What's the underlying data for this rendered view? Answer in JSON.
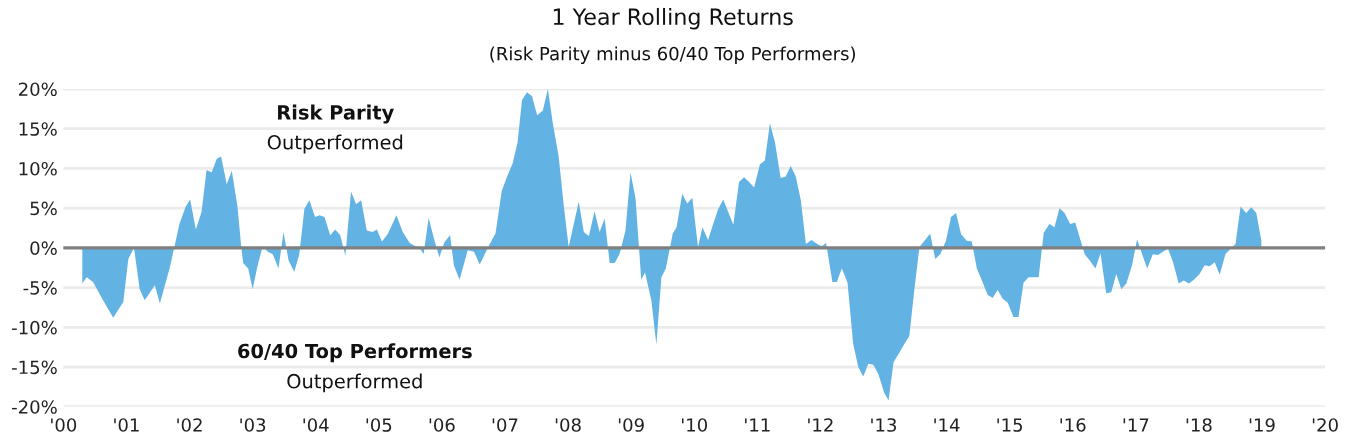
{
  "chart_data": {
    "type": "area",
    "title": "1 Year Rolling Returns",
    "subtitle": "(Risk Parity minus 60/40 Top Performers)",
    "annotations": [
      "Risk Parity",
      "Outperformed",
      "60/40 Top Performers",
      "Outperformed"
    ],
    "x": [
      2000.3,
      2000.37,
      2000.47,
      2000.63,
      2000.79,
      2000.95,
      2001.03,
      2001.12,
      2001.21,
      2001.29,
      2001.45,
      2001.53,
      2001.69,
      2001.77,
      2001.84,
      2001.94,
      2002.01,
      2002.1,
      2002.19,
      2002.27,
      2002.35,
      2002.43,
      2002.5,
      2002.59,
      2002.67,
      2002.76,
      2002.82,
      2002.85,
      2002.93,
      2003.0,
      2003.08,
      2003.16,
      2003.24,
      2003.32,
      2003.41,
      2003.49,
      2003.57,
      2003.66,
      2003.74,
      2003.82,
      2003.9,
      2003.99,
      2004.06,
      2004.14,
      2004.23,
      2004.31,
      2004.39,
      2004.47,
      2004.56,
      2004.64,
      2004.72,
      2004.81,
      2004.9,
      2004.97,
      2005.05,
      2005.14,
      2005.28,
      2005.38,
      2005.49,
      2005.58,
      2005.64,
      2005.71,
      2005.79,
      2005.87,
      2005.96,
      2006.04,
      2006.13,
      2006.19,
      2006.28,
      2006.41,
      2006.51,
      2006.6,
      2006.74,
      2006.85,
      2006.95,
      2007.04,
      2007.12,
      2007.2,
      2007.27,
      2007.35,
      2007.43,
      2007.51,
      2007.6,
      2007.68,
      2007.76,
      2007.85,
      2007.93,
      2008.01,
      2008.09,
      2008.17,
      2008.25,
      2008.33,
      2008.42,
      2008.5,
      2008.58,
      2008.66,
      2008.74,
      2008.82,
      2008.91,
      2008.99,
      2009.07,
      2009.16,
      2009.22,
      2009.32,
      2009.4,
      2009.48,
      2009.55,
      2009.66,
      2009.72,
      2009.81,
      2009.89,
      2009.97,
      2010.06,
      2010.13,
      2010.22,
      2010.3,
      2010.38,
      2010.46,
      2010.55,
      2010.62,
      2010.71,
      2010.79,
      2010.87,
      2010.95,
      2011.04,
      2011.12,
      2011.2,
      2011.28,
      2011.37,
      2011.45,
      2011.53,
      2011.61,
      2011.69,
      2011.77,
      2011.86,
      2011.95,
      2012.02,
      2012.09,
      2012.19,
      2012.26,
      2012.34,
      2012.43,
      2012.52,
      2012.6,
      2012.68,
      2012.76,
      2012.84,
      2012.92,
      2013.01,
      2013.08,
      2013.16,
      2013.25,
      2013.33,
      2013.41,
      2013.49,
      2013.57,
      2013.66,
      2013.74,
      2013.82,
      2013.9,
      2013.99,
      2014.07,
      2014.15,
      2014.23,
      2014.32,
      2014.4,
      2014.48,
      2014.56,
      2014.65,
      2014.73,
      2014.81,
      2014.89,
      2014.97,
      2015.06,
      2015.14,
      2015.22,
      2015.3,
      2015.38,
      2015.46,
      2015.54,
      2015.63,
      2015.71,
      2015.79,
      2015.87,
      2015.96,
      2016.04,
      2016.11,
      2016.19,
      2016.27,
      2016.36,
      2016.44,
      2016.53,
      2016.61,
      2016.69,
      2016.77,
      2016.85,
      2016.94,
      2017.02,
      2017.1,
      2017.18,
      2017.27,
      2017.35,
      2017.43,
      2017.51,
      2017.59,
      2017.68,
      2017.76,
      2017.84,
      2017.92,
      2018.01,
      2018.09,
      2018.17,
      2018.25,
      2018.33,
      2018.42,
      2018.5,
      2018.58,
      2018.66,
      2018.75,
      2018.83,
      2018.91,
      2018.99
    ],
    "series": [
      {
        "color": "#62b3e4",
        "values": [
          -4.5,
          -3.7,
          -4.3,
          -6.6,
          -8.8,
          -6.8,
          -1.4,
          0.0,
          -5.2,
          -6.6,
          -4.7,
          -7.0,
          -2.4,
          0.5,
          3.0,
          5.2,
          6.1,
          2.3,
          4.5,
          9.8,
          9.5,
          11.2,
          11.5,
          8.0,
          9.7,
          5.2,
          0.1,
          -1.9,
          -2.6,
          -5.2,
          -2.2,
          0.2,
          -0.5,
          -0.8,
          -2.6,
          2.0,
          -1.6,
          -3.0,
          -0.8,
          4.9,
          6.0,
          3.9,
          4.1,
          3.9,
          1.6,
          2.3,
          1.6,
          -1.0,
          7.1,
          5.5,
          6.0,
          2.2,
          2.0,
          2.3,
          0.8,
          1.7,
          4.1,
          2.0,
          0.6,
          0.2,
          0.1,
          -0.8,
          3.8,
          1.3,
          -1.2,
          0.7,
          1.6,
          -2.2,
          -4.0,
          -0.3,
          -0.5,
          -2.1,
          0.2,
          1.8,
          7.2,
          9.1,
          10.6,
          13.3,
          18.6,
          19.6,
          19.1,
          16.7,
          17.3,
          20.0,
          15.6,
          11.6,
          5.5,
          0.1,
          3.0,
          5.8,
          2.0,
          1.5,
          4.6,
          2.0,
          3.7,
          -1.9,
          -1.9,
          -0.7,
          2.2,
          9.5,
          6.2,
          -4.0,
          -3.1,
          -6.6,
          -12.2,
          -3.7,
          -2.6,
          1.8,
          2.6,
          6.8,
          5.6,
          6.3,
          0.1,
          2.6,
          1.0,
          3.0,
          4.9,
          6.1,
          4.3,
          2.9,
          8.3,
          8.9,
          8.3,
          7.6,
          10.5,
          11.0,
          15.7,
          13.3,
          8.8,
          9.0,
          10.3,
          9.0,
          6.0,
          0.5,
          1.0,
          0.5,
          0.2,
          0.6,
          -4.3,
          -4.3,
          -2.6,
          -4.4,
          -12.1,
          -15.0,
          -16.2,
          -14.6,
          -14.7,
          -15.9,
          -18.2,
          -19.2,
          -14.4,
          -13.2,
          -12.1,
          -11.1,
          -5.2,
          0.1,
          1.0,
          1.8,
          -1.4,
          -0.8,
          0.9,
          3.9,
          4.4,
          1.7,
          0.9,
          0.8,
          -2.6,
          -4.1,
          -5.9,
          -6.3,
          -5.3,
          -6.4,
          -6.9,
          -8.7,
          -8.7,
          -4.4,
          -3.7,
          -3.7,
          -3.7,
          1.9,
          3.0,
          2.6,
          5.0,
          4.4,
          3.0,
          3.2,
          1.3,
          -0.8,
          -1.6,
          -2.6,
          -0.7,
          -5.7,
          -5.6,
          -3.3,
          -5.2,
          -4.5,
          -2.2,
          1.1,
          -0.8,
          -2.6,
          -0.8,
          -0.9,
          -0.5,
          -0.1,
          -1.8,
          -4.5,
          -4.1,
          -4.5,
          -4.0,
          -3.3,
          -2.2,
          -2.3,
          -1.8,
          -3.4,
          -0.8,
          -0.1,
          0.5,
          5.2,
          4.4,
          5.1,
          4.4,
          0.9
        ]
      }
    ],
    "xlim": [
      2000,
      2020
    ],
    "xticks": [
      {
        "value": 2000,
        "label": "'00"
      },
      {
        "value": 2001,
        "label": "'01"
      },
      {
        "value": 2002,
        "label": "'02"
      },
      {
        "value": 2003,
        "label": "'03"
      },
      {
        "value": 2004,
        "label": "'04"
      },
      {
        "value": 2005,
        "label": "'05"
      },
      {
        "value": 2006,
        "label": "'06"
      },
      {
        "value": 2007,
        "label": "'07"
      },
      {
        "value": 2008,
        "label": "'08"
      },
      {
        "value": 2009,
        "label": "'09"
      },
      {
        "value": 2010,
        "label": "'10"
      },
      {
        "value": 2011,
        "label": "'11"
      },
      {
        "value": 2012,
        "label": "'12"
      },
      {
        "value": 2013,
        "label": "'13"
      },
      {
        "value": 2014,
        "label": "'14"
      },
      {
        "value": 2015,
        "label": "'15"
      },
      {
        "value": 2016,
        "label": "'16"
      },
      {
        "value": 2017,
        "label": "'17"
      },
      {
        "value": 2018,
        "label": "'18"
      },
      {
        "value": 2019,
        "label": "'19"
      },
      {
        "value": 2020,
        "label": "'20"
      }
    ],
    "ylim": [
      -20,
      20
    ],
    "yticks": [
      {
        "value": -20,
        "label": "-20%"
      },
      {
        "value": -15,
        "label": "-15%"
      },
      {
        "value": -10,
        "label": "-10%"
      },
      {
        "value": -5,
        "label": "-5%"
      },
      {
        "value": 0,
        "label": "0%"
      },
      {
        "value": 5,
        "label": "5%"
      },
      {
        "value": 10,
        "label": "10%"
      },
      {
        "value": 15,
        "label": "15%"
      },
      {
        "value": 20,
        "label": "20%"
      }
    ],
    "grid": "y",
    "ref_lines": [
      {
        "axis": "y",
        "value": 0,
        "color": "#808080"
      }
    ]
  }
}
